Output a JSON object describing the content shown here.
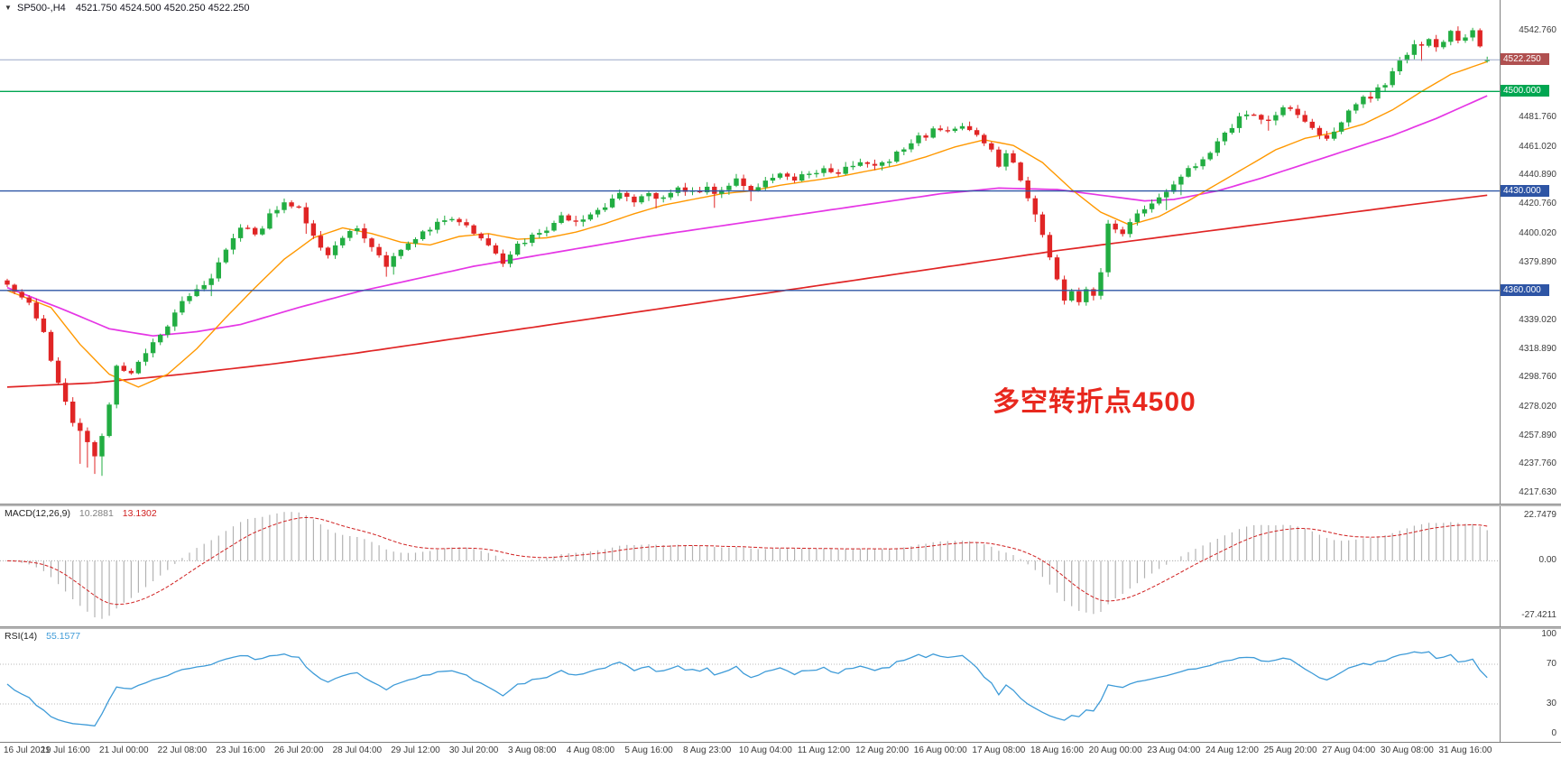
{
  "window": {
    "marker": "▼",
    "symbol_period": "SP500-,H4",
    "ohlc_text": "4521.750 4524.500 4520.250 4522.250"
  },
  "colors": {
    "bull": "#22ad42",
    "bear": "#e02525",
    "ma_fast": "#ff9800",
    "ma_mid": "#e536e5",
    "ma_slow": "#e02525",
    "level_blue": "#2e55a5",
    "level_green": "#00a651",
    "macd_hist": "#b3b3b3",
    "macd_signal": "#d02020",
    "rsi_line": "#3e9bd8",
    "annotation": "#e8281e"
  },
  "chart_data": {
    "type": "candlestick",
    "symbol": "SP500-",
    "timeframe": "H4",
    "bars": 204,
    "last": {
      "open": 4521.75,
      "high": 4524.5,
      "low": 4520.25,
      "close": 4522.25
    },
    "close_path": [
      [
        0,
        4363
      ],
      [
        3,
        4349
      ],
      [
        5,
        4331
      ],
      [
        7,
        4296
      ],
      [
        9,
        4263
      ],
      [
        11,
        4252
      ],
      [
        12,
        4244
      ],
      [
        13,
        4259
      ],
      [
        15,
        4306
      ],
      [
        17,
        4301
      ],
      [
        19,
        4318
      ],
      [
        21,
        4329
      ],
      [
        24,
        4352
      ],
      [
        26,
        4361
      ],
      [
        28,
        4372
      ],
      [
        30,
        4390
      ],
      [
        32,
        4404
      ],
      [
        34,
        4398
      ],
      [
        36,
        4415
      ],
      [
        38,
        4422
      ],
      [
        40,
        4417
      ],
      [
        42,
        4399
      ],
      [
        44,
        4386
      ],
      [
        46,
        4398
      ],
      [
        48,
        4402
      ],
      [
        50,
        4393
      ],
      [
        52,
        4377
      ],
      [
        54,
        4388
      ],
      [
        56,
        4396
      ],
      [
        58,
        4404
      ],
      [
        60,
        4412
      ],
      [
        62,
        4408
      ],
      [
        64,
        4400
      ],
      [
        66,
        4394
      ],
      [
        68,
        4377
      ],
      [
        70,
        4390
      ],
      [
        72,
        4399
      ],
      [
        74,
        4406
      ],
      [
        76,
        4411
      ],
      [
        78,
        4406
      ],
      [
        80,
        4413
      ],
      [
        82,
        4420
      ],
      [
        84,
        4427
      ],
      [
        86,
        4423
      ],
      [
        88,
        4429
      ],
      [
        90,
        4425
      ],
      [
        92,
        4431
      ],
      [
        94,
        4428
      ],
      [
        96,
        4433
      ],
      [
        98,
        4430
      ],
      [
        100,
        4436
      ],
      [
        102,
        4432
      ],
      [
        104,
        4438
      ],
      [
        106,
        4442
      ],
      [
        108,
        4438
      ],
      [
        110,
        4444
      ],
      [
        112,
        4447
      ],
      [
        114,
        4442
      ],
      [
        116,
        4448
      ],
      [
        118,
        4452
      ],
      [
        120,
        4450
      ],
      [
        122,
        4456
      ],
      [
        124,
        4463
      ],
      [
        126,
        4471
      ],
      [
        127,
        4477
      ],
      [
        129,
        4470
      ],
      [
        131,
        4474
      ],
      [
        133,
        4468
      ],
      [
        135,
        4460
      ],
      [
        136,
        4448
      ],
      [
        137,
        4455
      ],
      [
        139,
        4438
      ],
      [
        141,
        4415
      ],
      [
        143,
        4385
      ],
      [
        145,
        4352
      ],
      [
        146,
        4357
      ],
      [
        147,
        4349
      ],
      [
        148,
        4362
      ],
      [
        149,
        4357
      ],
      [
        150,
        4372
      ],
      [
        151,
        4408
      ],
      [
        153,
        4396
      ],
      [
        155,
        4413
      ],
      [
        157,
        4421
      ],
      [
        159,
        4430
      ],
      [
        161,
        4440
      ],
      [
        163,
        4447
      ],
      [
        165,
        4458
      ],
      [
        167,
        4469
      ],
      [
        169,
        4479
      ],
      [
        171,
        4484
      ],
      [
        173,
        4481
      ],
      [
        175,
        4487
      ],
      [
        177,
        4483
      ],
      [
        179,
        4477
      ],
      [
        181,
        4466
      ],
      [
        183,
        4477
      ],
      [
        185,
        4492
      ],
      [
        187,
        4498
      ],
      [
        189,
        4507
      ],
      [
        191,
        4521
      ],
      [
        193,
        4531
      ],
      [
        195,
        4538
      ],
      [
        196,
        4531
      ],
      [
        197,
        4536
      ],
      [
        198,
        4541
      ],
      [
        199,
        4533
      ],
      [
        200,
        4539
      ],
      [
        201,
        4543
      ],
      [
        202,
        4531
      ],
      [
        203,
        4522.25
      ]
    ],
    "ma_orange": [
      [
        0,
        4360
      ],
      [
        6,
        4348
      ],
      [
        10,
        4322
      ],
      [
        14,
        4301
      ],
      [
        18,
        4292
      ],
      [
        22,
        4301
      ],
      [
        26,
        4319
      ],
      [
        30,
        4341
      ],
      [
        34,
        4362
      ],
      [
        38,
        4382
      ],
      [
        42,
        4397
      ],
      [
        46,
        4404
      ],
      [
        50,
        4400
      ],
      [
        54,
        4394
      ],
      [
        58,
        4392
      ],
      [
        62,
        4398
      ],
      [
        66,
        4400
      ],
      [
        70,
        4396
      ],
      [
        74,
        4397
      ],
      [
        78,
        4401
      ],
      [
        82,
        4407
      ],
      [
        86,
        4414
      ],
      [
        90,
        4420
      ],
      [
        94,
        4424
      ],
      [
        98,
        4428
      ],
      [
        102,
        4430
      ],
      [
        106,
        4434
      ],
      [
        110,
        4437
      ],
      [
        114,
        4440
      ],
      [
        118,
        4444
      ],
      [
        122,
        4448
      ],
      [
        126,
        4454
      ],
      [
        130,
        4461
      ],
      [
        134,
        4466
      ],
      [
        138,
        4462
      ],
      [
        142,
        4450
      ],
      [
        146,
        4431
      ],
      [
        150,
        4415
      ],
      [
        154,
        4406
      ],
      [
        158,
        4412
      ],
      [
        162,
        4423
      ],
      [
        166,
        4435
      ],
      [
        170,
        4447
      ],
      [
        174,
        4459
      ],
      [
        178,
        4467
      ],
      [
        182,
        4471
      ],
      [
        186,
        4477
      ],
      [
        190,
        4487
      ],
      [
        194,
        4500
      ],
      [
        198,
        4512
      ],
      [
        203,
        4521
      ]
    ],
    "ma_magenta": [
      [
        0,
        4362
      ],
      [
        8,
        4346
      ],
      [
        14,
        4333
      ],
      [
        20,
        4328
      ],
      [
        26,
        4331
      ],
      [
        32,
        4336
      ],
      [
        40,
        4348
      ],
      [
        48,
        4359
      ],
      [
        56,
        4368
      ],
      [
        64,
        4377
      ],
      [
        72,
        4384
      ],
      [
        80,
        4391
      ],
      [
        88,
        4398
      ],
      [
        96,
        4404
      ],
      [
        104,
        4410
      ],
      [
        112,
        4416
      ],
      [
        120,
        4422
      ],
      [
        128,
        4428
      ],
      [
        136,
        4432
      ],
      [
        144,
        4431
      ],
      [
        150,
        4427
      ],
      [
        156,
        4423
      ],
      [
        160,
        4424
      ],
      [
        166,
        4430
      ],
      [
        172,
        4439
      ],
      [
        178,
        4449
      ],
      [
        184,
        4459
      ],
      [
        190,
        4469
      ],
      [
        196,
        4481
      ],
      [
        203,
        4497
      ]
    ],
    "ma_red": [
      [
        0,
        4292
      ],
      [
        12,
        4295
      ],
      [
        24,
        4301
      ],
      [
        36,
        4308
      ],
      [
        48,
        4316
      ],
      [
        60,
        4325
      ],
      [
        72,
        4334
      ],
      [
        84,
        4343
      ],
      [
        96,
        4352
      ],
      [
        108,
        4361
      ],
      [
        120,
        4370
      ],
      [
        132,
        4379
      ],
      [
        144,
        4388
      ],
      [
        156,
        4396
      ],
      [
        168,
        4404
      ],
      [
        180,
        4412
      ],
      [
        192,
        4420
      ],
      [
        203,
        4427
      ]
    ],
    "levels": [
      {
        "price": 4500.0,
        "color": "#00a651",
        "badge": "4500.000"
      },
      {
        "price": 4430.0,
        "color": "#2e55a5",
        "badge": "4430.000"
      },
      {
        "price": 4360.0,
        "color": "#2e55a5",
        "badge": "4360.000"
      }
    ],
    "current": {
      "price": 4522.25,
      "badge": "4522.250",
      "line_color": "#9aa7c8",
      "badge_color": "#b05050"
    },
    "annotation": {
      "text": "多空转折点4500",
      "color": "#e8281e"
    },
    "price_axis_ticks": [
      "4542.760",
      "4481.760",
      "4461.020",
      "4440.890",
      "4420.760",
      "4400.020",
      "4379.890",
      "4339.020",
      "4318.890",
      "4298.760",
      "4278.020",
      "4257.890",
      "4237.760",
      "4217.630"
    ],
    "x_axis_labels": [
      "16 Jul 2021",
      "19 Jul 16:00",
      "21 Jul 00:00",
      "22 Jul 08:00",
      "23 Jul 16:00",
      "26 Jul 20:00",
      "28 Jul 04:00",
      "29 Jul 12:00",
      "30 Jul 20:00",
      "3 Aug 08:00",
      "4 Aug 08:00",
      "5 Aug 16:00",
      "8 Aug 23:00",
      "10 Aug 04:00",
      "11 Aug 12:00",
      "12 Aug 20:00",
      "16 Aug 00:00",
      "17 Aug 08:00",
      "18 Aug 16:00",
      "20 Aug 00:00",
      "23 Aug 04:00",
      "24 Aug 12:00",
      "25 Aug 20:00",
      "27 Aug 04:00",
      "30 Aug 08:00",
      "31 Aug 16:00"
    ],
    "indicators": {
      "macd": {
        "label": "MACD(12,26,9)",
        "value_main": "10.2881",
        "value_signal": "13.1302",
        "params": [
          12,
          26,
          9
        ],
        "axis": [
          "22.7479",
          "0.00",
          "-27.4211"
        ]
      },
      "rsi": {
        "label": "RSI(14)",
        "value": "55.1577",
        "period": 14,
        "axis": [
          "100",
          "70",
          "30",
          "0"
        ],
        "levels": [
          70,
          30
        ]
      }
    }
  }
}
